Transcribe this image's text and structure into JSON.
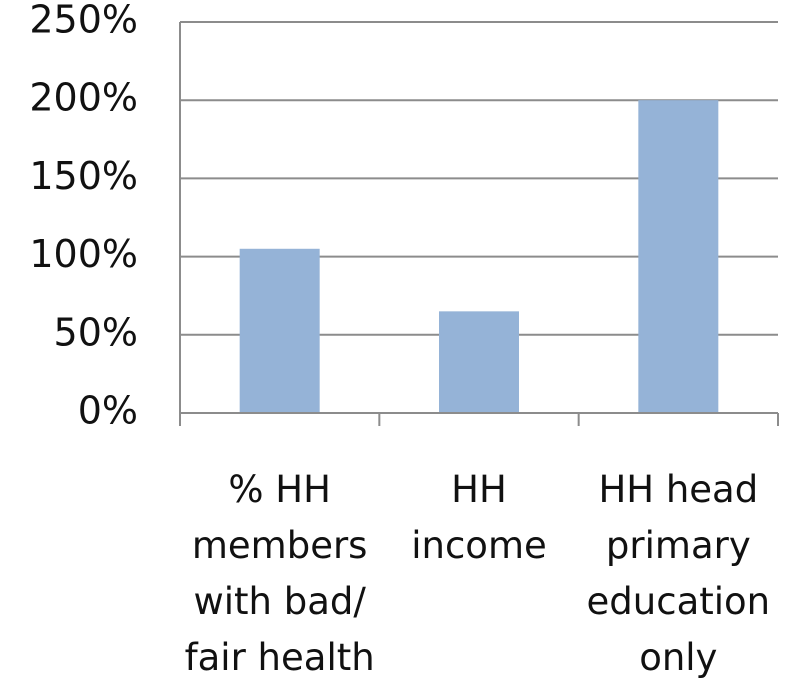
{
  "chart_data": {
    "type": "bar",
    "categories": [
      "% HH members with bad/ fair health",
      "HH income",
      "HH head primary education only"
    ],
    "values": [
      105,
      65,
      200
    ],
    "color": "#95b3d7",
    "ylim": [
      0,
      250
    ],
    "yticks": [
      {
        "value": 0,
        "label": "0%"
      },
      {
        "value": 50,
        "label": "50%"
      },
      {
        "value": 100,
        "label": "100%"
      },
      {
        "value": 150,
        "label": "150%"
      },
      {
        "value": 200,
        "label": "200%"
      },
      {
        "value": 250,
        "label": "250%"
      }
    ],
    "grid": true
  }
}
